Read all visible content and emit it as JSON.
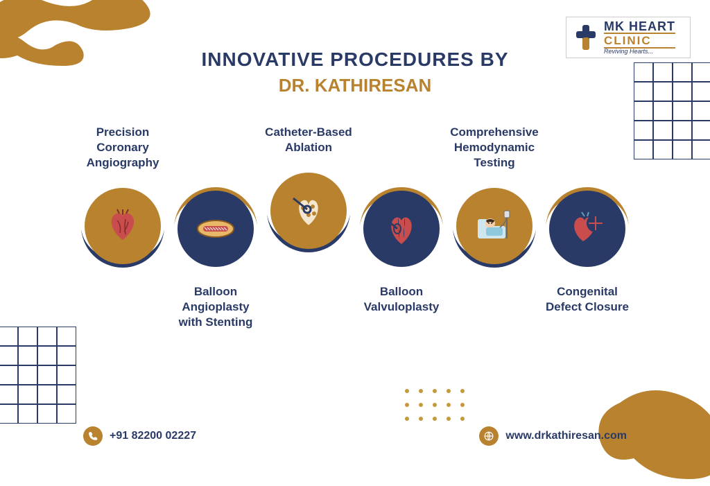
{
  "colors": {
    "navy": "#2a3a66",
    "gold": "#b8822f",
    "white": "#ffffff"
  },
  "logo": {
    "line1": "MK HEART",
    "line2": "CLINIC",
    "tagline": "Reviving Hearts..."
  },
  "title": {
    "line1": "INNOVATIVE PROCEDURES BY",
    "line2": "DR. KATHIRESAN"
  },
  "procedures": [
    {
      "label": "Precision Coronary\nAngiography",
      "position": "top",
      "icon": "heart-arteries"
    },
    {
      "label": "Balloon Angioplasty\nwith Stenting",
      "position": "bottom",
      "icon": "stent"
    },
    {
      "label": "Catheter-Based\nAblation",
      "position": "top",
      "icon": "ablation"
    },
    {
      "label": "Balloon\nValvuloplasty",
      "position": "bottom",
      "icon": "heart-valve"
    },
    {
      "label": "Comprehensive\nHemodynamic Testing",
      "position": "top",
      "icon": "patient-iv"
    },
    {
      "label": "Congenital\nDefect Closure",
      "position": "bottom",
      "icon": "heart-patch"
    }
  ],
  "contact": {
    "phone": "+91 82200 02227",
    "website": "www.drkathiresan.com"
  },
  "fontsize": {
    "title": 28,
    "subtitle": 26,
    "label": 17,
    "contact": 16
  }
}
